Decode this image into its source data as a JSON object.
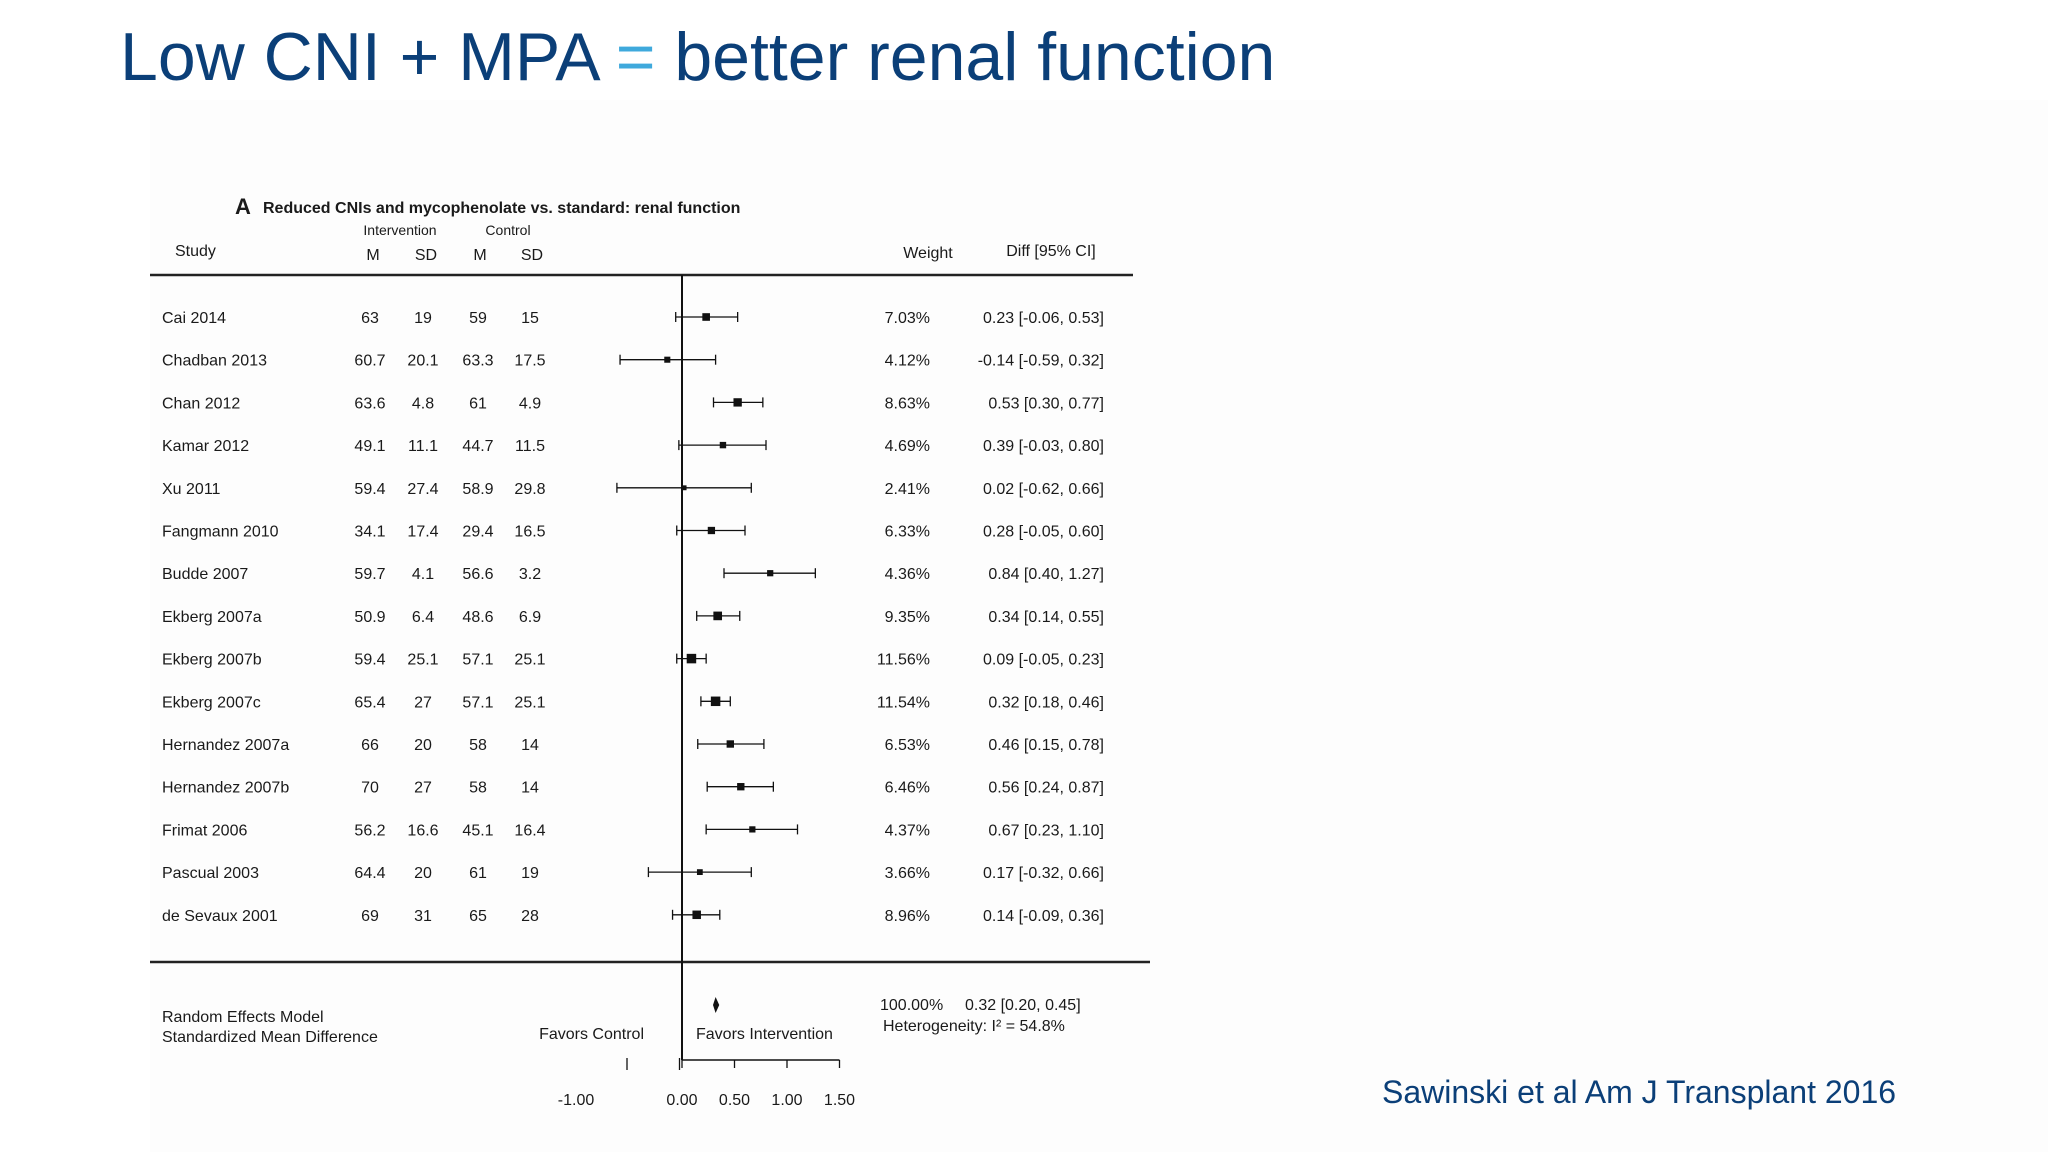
{
  "slide": {
    "title_part1": "Low CNI + MPA",
    "title_eq": "=",
    "title_part2": "better renal function",
    "citation": "Sawinski et al Am J Transplant 2016"
  },
  "figure": {
    "panel_letter": "A",
    "panel_title": "Reduced CNIs and mycophenolate vs. standard: renal function",
    "group_intervention": "Intervention",
    "group_control": "Control",
    "col_study": "Study",
    "col_m": "M",
    "col_sd": "SD",
    "col_weight": "Weight",
    "col_diff": "Diff [95% CI]",
    "summary_label1": "Random Effects Model",
    "summary_label2": "Standardized Mean Difference",
    "favors_control": "Favors Control",
    "favors_intervention": "Favors Intervention",
    "summary_weight": "100.00%",
    "summary_ci_text": "0.32 [0.20, 0.45]",
    "heterogeneity": "Heterogeneity: I² = 54.8%"
  },
  "chart_data": {
    "type": "forest",
    "title": "Reduced CNIs and mycophenolate vs. standard: renal function",
    "xlim": [
      -1.0,
      1.5
    ],
    "xticks": [
      -1.0,
      0.0,
      0.5,
      1.0,
      1.5
    ],
    "xtick_labels": [
      "-1.00",
      "0.00",
      "0.50",
      "1.00",
      "1.50"
    ],
    "studies": [
      {
        "name": "Cai 2014",
        "int_m": "63",
        "int_sd": "19",
        "ctl_m": "59",
        "ctl_sd": "15",
        "weight": "7.03%",
        "ci_text": "0.23 [-0.06, 0.53]",
        "est": 0.23,
        "lo": -0.06,
        "hi": 0.53,
        "w": 7.03
      },
      {
        "name": "Chadban 2013",
        "int_m": "60.7",
        "int_sd": "20.1",
        "ctl_m": "63.3",
        "ctl_sd": "17.5",
        "weight": "4.12%",
        "ci_text": "-0.14 [-0.59, 0.32]",
        "est": -0.14,
        "lo": -0.59,
        "hi": 0.32,
        "w": 4.12
      },
      {
        "name": "Chan 2012",
        "int_m": "63.6",
        "int_sd": "4.8",
        "ctl_m": "61",
        "ctl_sd": "4.9",
        "weight": "8.63%",
        "ci_text": "0.53 [0.30, 0.77]",
        "est": 0.53,
        "lo": 0.3,
        "hi": 0.77,
        "w": 8.63
      },
      {
        "name": "Kamar 2012",
        "int_m": "49.1",
        "int_sd": "11.1",
        "ctl_m": "44.7",
        "ctl_sd": "11.5",
        "weight": "4.69%",
        "ci_text": "0.39 [-0.03, 0.80]",
        "est": 0.39,
        "lo": -0.03,
        "hi": 0.8,
        "w": 4.69
      },
      {
        "name": "Xu 2011",
        "int_m": "59.4",
        "int_sd": "27.4",
        "ctl_m": "58.9",
        "ctl_sd": "29.8",
        "weight": "2.41%",
        "ci_text": "0.02 [-0.62, 0.66]",
        "est": 0.02,
        "lo": -0.62,
        "hi": 0.66,
        "w": 2.41
      },
      {
        "name": "Fangmann 2010",
        "int_m": "34.1",
        "int_sd": "17.4",
        "ctl_m": "29.4",
        "ctl_sd": "16.5",
        "weight": "6.33%",
        "ci_text": "0.28 [-0.05, 0.60]",
        "est": 0.28,
        "lo": -0.05,
        "hi": 0.6,
        "w": 6.33
      },
      {
        "name": "Budde 2007",
        "int_m": "59.7",
        "int_sd": "4.1",
        "ctl_m": "56.6",
        "ctl_sd": "3.2",
        "weight": "4.36%",
        "ci_text": "0.84 [0.40, 1.27]",
        "est": 0.84,
        "lo": 0.4,
        "hi": 1.27,
        "w": 4.36
      },
      {
        "name": "Ekberg 2007a",
        "int_m": "50.9",
        "int_sd": "6.4",
        "ctl_m": "48.6",
        "ctl_sd": "6.9",
        "weight": "9.35%",
        "ci_text": "0.34 [0.14, 0.55]",
        "est": 0.34,
        "lo": 0.14,
        "hi": 0.55,
        "w": 9.35
      },
      {
        "name": "Ekberg 2007b",
        "int_m": "59.4",
        "int_sd": "25.1",
        "ctl_m": "57.1",
        "ctl_sd": "25.1",
        "weight": "11.56%",
        "ci_text": "0.09 [-0.05, 0.23]",
        "est": 0.09,
        "lo": -0.05,
        "hi": 0.23,
        "w": 11.56
      },
      {
        "name": "Ekberg 2007c",
        "int_m": "65.4",
        "int_sd": "27",
        "ctl_m": "57.1",
        "ctl_sd": "25.1",
        "weight": "11.54%",
        "ci_text": "0.32 [0.18, 0.46]",
        "est": 0.32,
        "lo": 0.18,
        "hi": 0.46,
        "w": 11.54
      },
      {
        "name": "Hernandez 2007a",
        "int_m": "66",
        "int_sd": "20",
        "ctl_m": "58",
        "ctl_sd": "14",
        "weight": "6.53%",
        "ci_text": "0.46 [0.15, 0.78]",
        "est": 0.46,
        "lo": 0.15,
        "hi": 0.78,
        "w": 6.53
      },
      {
        "name": "Hernandez 2007b",
        "int_m": "70",
        "int_sd": "27",
        "ctl_m": "58",
        "ctl_sd": "14",
        "weight": "6.46%",
        "ci_text": "0.56 [0.24, 0.87]",
        "est": 0.56,
        "lo": 0.24,
        "hi": 0.87,
        "w": 6.46
      },
      {
        "name": "Frimat 2006",
        "int_m": "56.2",
        "int_sd": "16.6",
        "ctl_m": "45.1",
        "ctl_sd": "16.4",
        "weight": "4.37%",
        "ci_text": "0.67 [0.23, 1.10]",
        "est": 0.67,
        "lo": 0.23,
        "hi": 1.1,
        "w": 4.37
      },
      {
        "name": "Pascual 2003",
        "int_m": "64.4",
        "int_sd": "20",
        "ctl_m": "61",
        "ctl_sd": "19",
        "weight": "3.66%",
        "ci_text": "0.17 [-0.32, 0.66]",
        "est": 0.17,
        "lo": -0.32,
        "hi": 0.66,
        "w": 3.66
      },
      {
        "name": "de Sevaux 2001",
        "int_m": "69",
        "int_sd": "31",
        "ctl_m": "65",
        "ctl_sd": "28",
        "weight": "8.96%",
        "ci_text": "0.14 [-0.09, 0.36]",
        "est": 0.14,
        "lo": -0.09,
        "hi": 0.36,
        "w": 8.96
      }
    ],
    "summary": {
      "est": 0.32,
      "lo": 0.2,
      "hi": 0.45
    }
  }
}
